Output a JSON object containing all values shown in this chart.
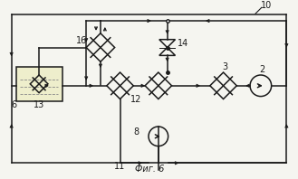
{
  "title": "Фиг. 6",
  "label_10": "10",
  "label_2": "2",
  "label_3": "3",
  "label_6": "6",
  "label_8": "8",
  "label_11": "11",
  "label_12": "12",
  "label_13": "13",
  "label_14": "14",
  "label_16": "16",
  "bg_color": "#f5f5f0",
  "line_color": "#1a1a1a",
  "fig_width": 3.29,
  "fig_height": 1.98,
  "dpi": 100
}
